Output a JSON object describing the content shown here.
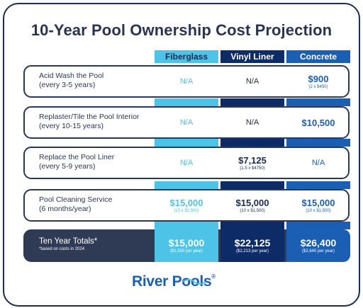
{
  "title": "10-Year Pool Ownership Cost Projection",
  "columns": {
    "fiberglass": "Fiberglass",
    "vinyl": "Vinyl Liner",
    "concrete": "Concrete"
  },
  "rows": [
    {
      "label_line1": "Acid Wash the Pool",
      "label_line2": "(every 3-5 years)",
      "fiberglass": {
        "value": "N/A",
        "sub": ""
      },
      "vinyl": {
        "value": "N/A",
        "sub": ""
      },
      "concrete": {
        "value": "$900",
        "sub": "(2 x $450)"
      }
    },
    {
      "label_line1": "Replaster/Tile the Pool Interior",
      "label_line2": "(every 10-15 years)",
      "fiberglass": {
        "value": "N/A",
        "sub": ""
      },
      "vinyl": {
        "value": "N/A",
        "sub": ""
      },
      "concrete": {
        "value": "$10,500",
        "sub": ""
      }
    },
    {
      "label_line1": "Replace the Pool Liner",
      "label_line2": "(every 5-9 years)",
      "fiberglass": {
        "value": "N/A",
        "sub": ""
      },
      "vinyl": {
        "value": "$7,125",
        "sub": "(1.5 x $4750)"
      },
      "concrete": {
        "value": "N/A",
        "sub": ""
      }
    },
    {
      "label_line1": "Pool Cleaning Service",
      "label_line2": "(6 months/year)",
      "fiberglass": {
        "value": "$15,000",
        "sub": "(10 x $1,500)"
      },
      "vinyl": {
        "value": "$15,000",
        "sub": "(10 x $1,500)"
      },
      "concrete": {
        "value": "$15,000",
        "sub": "(10 x $1,500)"
      }
    }
  ],
  "totals": {
    "label": "Ten Year Totals*",
    "note": "*based on costs in 2024",
    "fiberglass": {
      "value": "$15,000",
      "sub": "($1,500 per year)"
    },
    "vinyl": {
      "value": "$22,125",
      "sub": "($2,213 per year)"
    },
    "concrete": {
      "value": "$26,400",
      "sub": "($2,640 per year)"
    }
  },
  "logo": {
    "part1": "River",
    "part2": "Pools",
    "mark": "®"
  },
  "colors": {
    "fiberglass": "#4dc3e8",
    "vinyl": "#0d2b66",
    "concrete": "#1a5fb4",
    "frame": "#1c2d52"
  }
}
